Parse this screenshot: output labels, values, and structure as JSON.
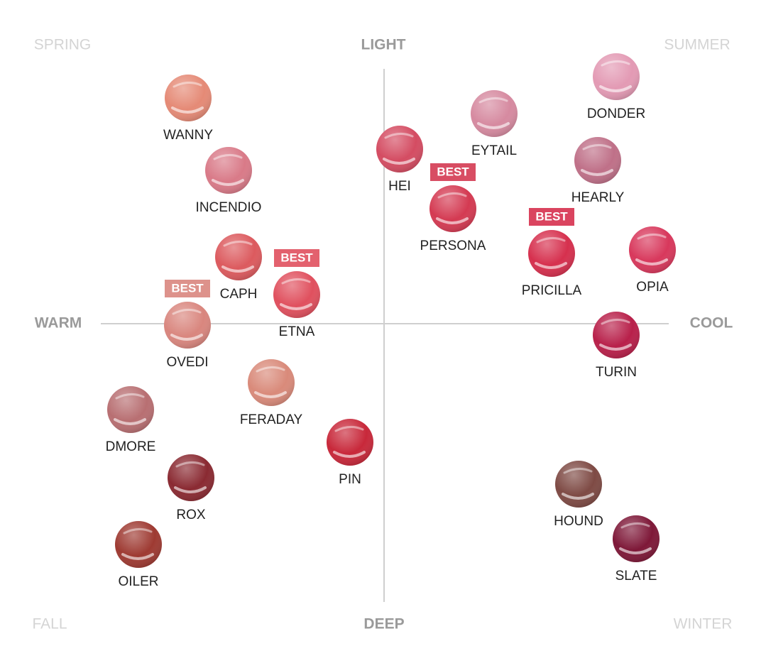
{
  "corners": {
    "top_left": "SPRING",
    "top_right": "SUMMER",
    "bottom_left": "FALL",
    "bottom_right": "WINTER"
  },
  "axes": {
    "top": "LIGHT",
    "bottom": "DEEP",
    "left": "WARM",
    "right": "COOL"
  },
  "swatches": [
    {
      "name": "WANNY",
      "color": "#e58a76"
    },
    {
      "name": "INCENDIO",
      "color": "#d97a88"
    },
    {
      "name": "CAPH",
      "color": "#dc5a5e"
    },
    {
      "name": "ETNA",
      "color": "#e0505e",
      "badge": "BEST"
    },
    {
      "name": "OVEDI",
      "color": "#d9867e",
      "badge": "BEST"
    },
    {
      "name": "FERADAY",
      "color": "#d98a7a"
    },
    {
      "name": "DMORE",
      "color": "#b86f72"
    },
    {
      "name": "PIN",
      "color": "#c8283a"
    },
    {
      "name": "ROX",
      "color": "#8a2a32"
    },
    {
      "name": "OILER",
      "color": "#9e3a32"
    },
    {
      "name": "HEI",
      "color": "#d44c62"
    },
    {
      "name": "PERSONA",
      "color": "#d43a52",
      "badge": "BEST"
    },
    {
      "name": "EYTAIL",
      "color": "#d68aa0"
    },
    {
      "name": "DONDER",
      "color": "#e39ab4"
    },
    {
      "name": "HEARLY",
      "color": "#bf7088"
    },
    {
      "name": "PRICILLA",
      "color": "#d6304e",
      "badge": "BEST"
    },
    {
      "name": "OPIA",
      "color": "#d8385c"
    },
    {
      "name": "TURIN",
      "color": "#b8204a"
    },
    {
      "name": "HOUND",
      "color": "#7e4a44"
    },
    {
      "name": "SLATE",
      "color": "#7e1838"
    }
  ]
}
